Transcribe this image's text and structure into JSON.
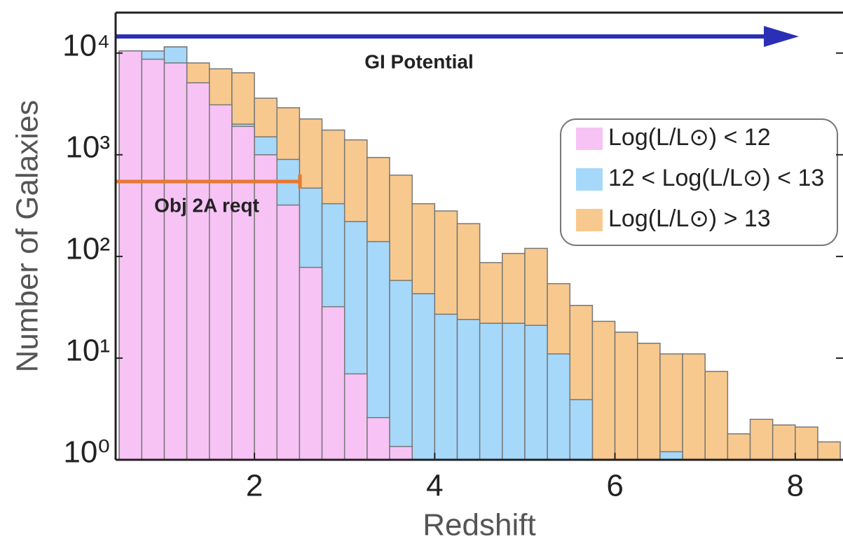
{
  "chart_data": {
    "type": "histogram",
    "x_label": "Redshift",
    "y_label": "Number of Galaxies",
    "log_y": true,
    "bins": [
      0.5,
      0.75,
      1.0,
      1.25,
      1.5,
      1.75,
      2.0,
      2.25,
      2.5,
      2.75,
      3.0,
      3.25,
      3.5,
      3.75,
      4.0,
      4.25,
      4.5,
      4.75,
      5.0,
      5.25,
      5.5,
      5.75,
      6.0,
      6.25,
      6.5,
      6.75,
      7.0,
      7.25,
      7.5,
      7.75,
      8.0,
      8.25,
      8.5
    ],
    "series": [
      {
        "name": "Log(L/L⊙) < 12",
        "color": "#f7c3f5",
        "values": [
          10500,
          8700,
          8000,
          5100,
          3100,
          1900,
          1000,
          320,
          78,
          32,
          7,
          2.6,
          1.35,
          null,
          null,
          null,
          null,
          null,
          null,
          null,
          null,
          null,
          null,
          null,
          null,
          null,
          null,
          null,
          null,
          null,
          null,
          null
        ]
      },
      {
        "name": "12 < Log(L/L⊙) < 13",
        "color": "#a6d8fa",
        "values": [
          10500,
          10500,
          11500,
          4500,
          2300,
          2000,
          1500,
          900,
          470,
          330,
          220,
          140,
          58,
          43,
          27,
          24,
          22,
          22,
          21,
          11,
          3.9,
          null,
          null,
          null,
          1.2,
          null,
          null,
          null,
          null,
          null,
          null,
          null
        ]
      },
      {
        "name": "Log(L/L⊙) > 13",
        "color": "#f8c98e",
        "values": [
          10500,
          10500,
          11500,
          8000,
          7000,
          6400,
          3600,
          2900,
          2250,
          1750,
          1400,
          940,
          630,
          330,
          280,
          210,
          87,
          107,
          120,
          54,
          33,
          23,
          18,
          14,
          11,
          11,
          7.4,
          1.8,
          2.5,
          2.2,
          2.1,
          1.5
        ]
      }
    ],
    "xlim": [
      0.46,
      8.53
    ],
    "xticks": [
      2,
      4,
      6,
      8
    ],
    "ylim": [
      1,
      25000
    ],
    "yticks": [
      {
        "value": 1,
        "label": "10⁰"
      },
      {
        "value": 10,
        "label": "10¹"
      },
      {
        "value": 100,
        "label": "10²"
      },
      {
        "value": 1000,
        "label": "10³"
      },
      {
        "value": 10000,
        "label": "10⁴"
      }
    ],
    "annotations": [
      "GI Potential",
      "Obj 2A reqt"
    ]
  }
}
